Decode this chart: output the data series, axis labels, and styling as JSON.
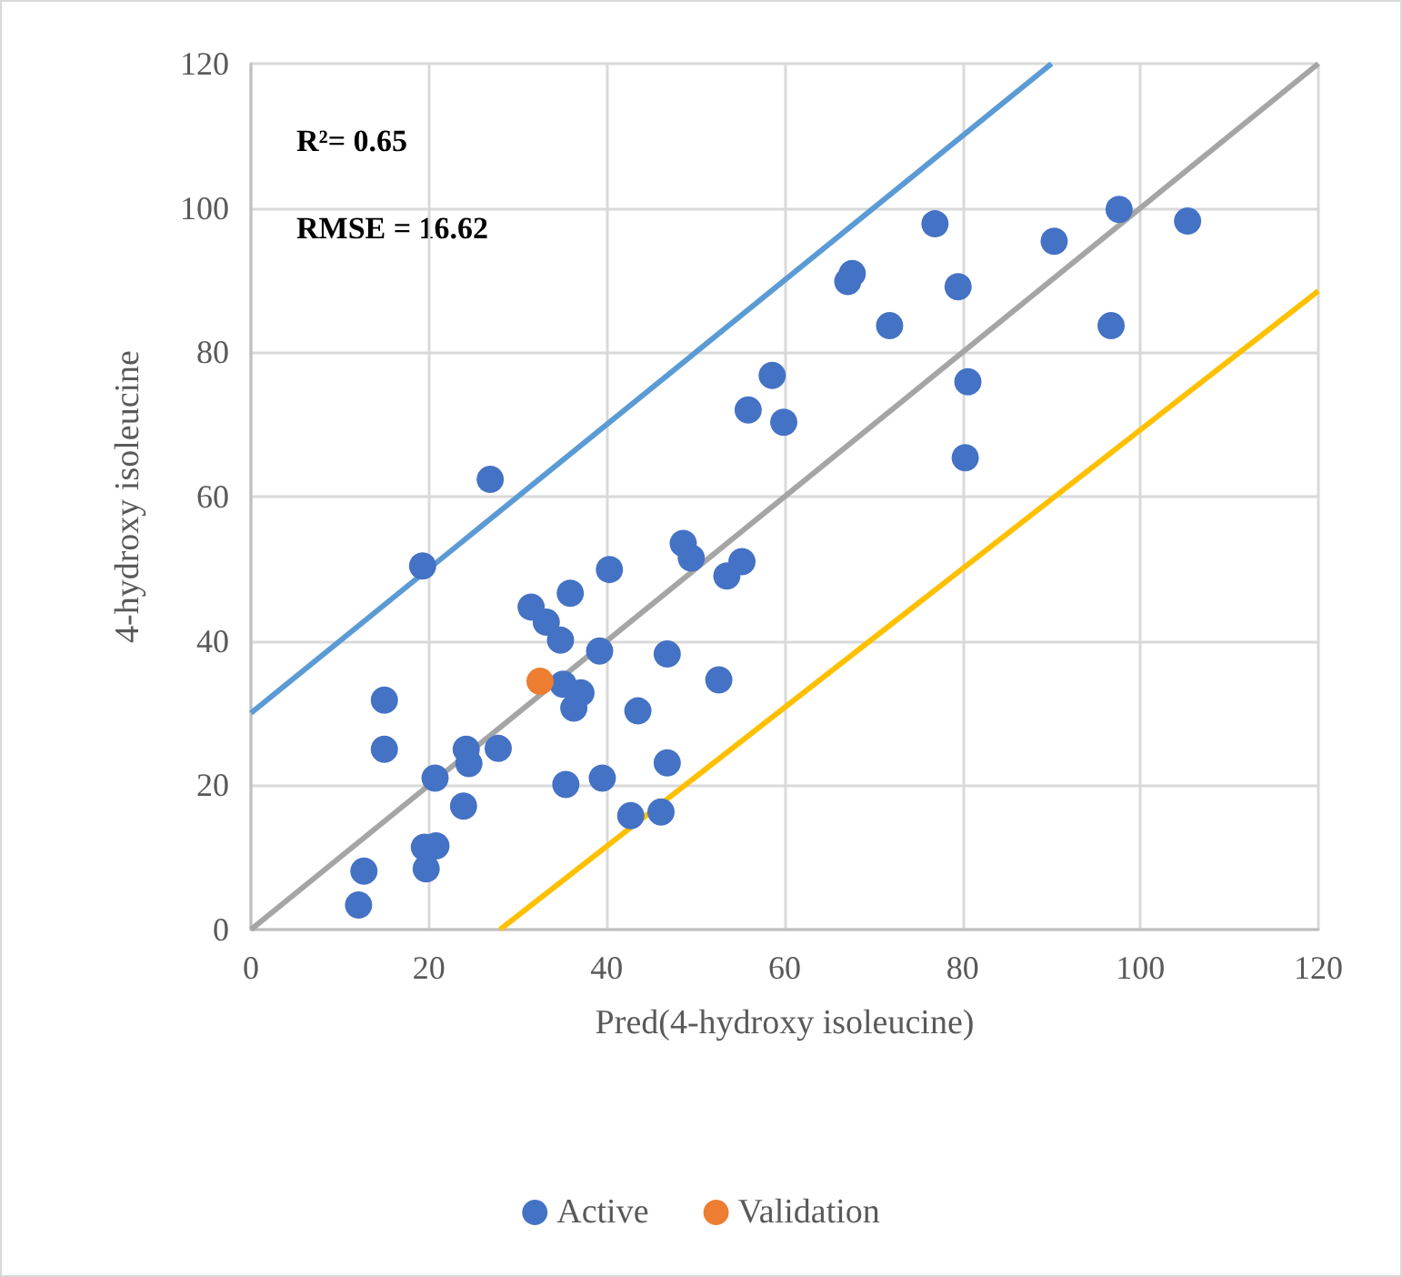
{
  "chart_data": {
    "type": "scatter",
    "xlabel": "Pred(4-hydroxy isoleucine)",
    "ylabel": "4-hydroxy isoleucine",
    "annotations": [
      "R²= 0.65",
      "RMSE = 16.62"
    ],
    "xlim": [
      0,
      120
    ],
    "ylim": [
      0,
      120
    ],
    "xticks": [
      0,
      20,
      40,
      60,
      80,
      100,
      120
    ],
    "yticks": [
      0,
      20,
      40,
      60,
      80,
      100,
      120
    ],
    "grid": true,
    "legend": "bottom",
    "marker": "circle",
    "series": [
      {
        "name": "Active",
        "color": "#4472c4",
        "x": [
          26.9,
          19.3,
          31.5,
          33.2,
          34.8,
          35.9,
          40.3,
          39.2,
          48.6,
          49.5,
          53.5,
          55.2,
          46.8,
          52.6,
          43.5,
          35.1,
          37.1,
          36.3,
          46.8,
          39.5,
          35.4,
          42.7,
          46.1,
          15.0,
          15.0,
          24.2,
          24.5,
          27.8,
          20.7,
          23.9,
          19.5,
          20.8,
          19.7,
          12.7,
          12.1,
          76.9,
          67.6,
          67.1,
          71.8,
          79.5,
          90.3,
          97.6,
          105.3,
          96.7,
          58.6,
          59.9,
          80.6,
          80.3,
          55.9
        ],
        "values": [
          62.4,
          50.4,
          44.7,
          42.6,
          40.1,
          46.6,
          49.9,
          38.6,
          53.5,
          51.5,
          49.0,
          51.0,
          38.2,
          34.6,
          30.3,
          34.0,
          32.8,
          30.7,
          23.1,
          21.0,
          20.1,
          15.8,
          16.3,
          31.8,
          25.0,
          25.0,
          23.0,
          25.1,
          21.0,
          17.1,
          11.4,
          11.6,
          8.4,
          8.1,
          3.4,
          97.8,
          90.9,
          89.8,
          83.7,
          89.1,
          95.4,
          99.8,
          98.2,
          83.7,
          76.8,
          70.3,
          75.9,
          65.4,
          72.0
        ]
      },
      {
        "name": "Validation",
        "color": "#ed7d31",
        "x": [
          32.5
        ],
        "values": [
          34.4
        ]
      },
      {
        "type": "line",
        "marker": "none",
        "color": "#5b9bd5",
        "x": [
          0,
          90
        ],
        "values": [
          30,
          120
        ]
      },
      {
        "type": "line",
        "marker": "none",
        "color": "#a5a5a5",
        "x": [
          0,
          120
        ],
        "values": [
          0,
          120
        ]
      },
      {
        "type": "line",
        "marker": "none",
        "color": "#ffc000",
        "x": [
          28,
          120
        ],
        "values": [
          0,
          88.5
        ]
      }
    ]
  }
}
